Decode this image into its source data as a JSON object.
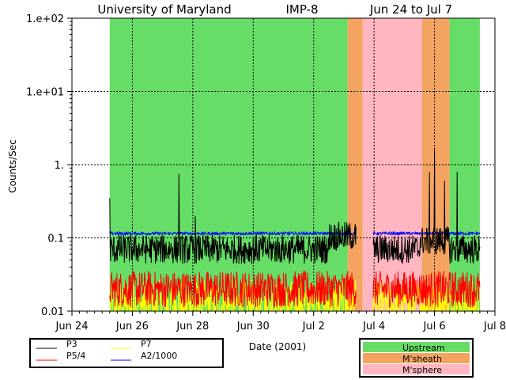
{
  "chart_data": {
    "type": "line",
    "title_parts": [
      "University of Maryland",
      "IMP-8",
      "Jun 24 to Jul 7"
    ],
    "xlabel": "Date (2001)",
    "ylabel": "Counts/Sec",
    "y_scale": "log",
    "ylim": [
      0.01,
      100
    ],
    "xlim": [
      "2001-06-24",
      "2001-07-08"
    ],
    "y_ticks": [
      {
        "value": 100,
        "label": "1.e+02"
      },
      {
        "value": 10,
        "label": "1.e+01"
      },
      {
        "value": 1,
        "label": "1."
      },
      {
        "value": 0.1,
        "label": "0.1"
      },
      {
        "value": 0.01,
        "label": "0.01"
      }
    ],
    "x_ticks": [
      {
        "value": "2001-06-24",
        "label": "Jun 24"
      },
      {
        "value": "2001-06-26",
        "label": "Jun 26"
      },
      {
        "value": "2001-06-28",
        "label": "Jun 28"
      },
      {
        "value": "2001-06-30",
        "label": "Jun 30"
      },
      {
        "value": "2001-07-02",
        "label": "Jul 2"
      },
      {
        "value": "2001-07-04",
        "label": "Jul 4"
      },
      {
        "value": "2001-07-06",
        "label": "Jul 6"
      },
      {
        "value": "2001-07-08",
        "label": "Jul 8"
      }
    ],
    "grid": true,
    "regions": [
      {
        "start": "2001-06-25 06:00",
        "end": "2001-07-03 03:00",
        "type": "Upstream"
      },
      {
        "start": "2001-07-03 03:00",
        "end": "2001-07-03 15:00",
        "type": "M'sheath"
      },
      {
        "start": "2001-07-03 15:00",
        "end": "2001-07-05 14:00",
        "type": "M'sphere"
      },
      {
        "start": "2001-07-05 14:00",
        "end": "2001-07-06 12:00",
        "type": "M'sheath"
      },
      {
        "start": "2001-07-06 12:00",
        "end": "2001-07-07 12:00",
        "type": "Upstream"
      }
    ],
    "region_colors": {
      "Upstream": "#66dd66",
      "M'sheath": "#f4a460",
      "M'sphere": "#ffb6c1"
    },
    "series": [
      {
        "name": "P3",
        "color": "#000000",
        "level": 0.07,
        "spread": 0.2,
        "data_gaps": [
          [
            "2001-07-03 10:00",
            "2001-07-03 23:00"
          ]
        ],
        "spikes": [
          {
            "x": "2001-06-25 06:00",
            "y": 0.35
          },
          {
            "x": "2001-06-27 13:00",
            "y": 0.75
          },
          {
            "x": "2001-06-28 02:00",
            "y": 0.2
          },
          {
            "x": "2001-07-05 20:00",
            "y": 0.8
          },
          {
            "x": "2001-07-06 00:00",
            "y": 1.6
          },
          {
            "x": "2001-07-06 08:00",
            "y": 0.6
          },
          {
            "x": "2001-07-06 18:00",
            "y": 0.8
          }
        ]
      },
      {
        "name": "P5/4",
        "color": "#ff0000",
        "level": 0.02,
        "spread": 0.25,
        "data_gaps": [
          [
            "2001-07-03 10:00",
            "2001-07-03 23:00"
          ]
        ],
        "spikes": []
      },
      {
        "name": "P7",
        "color": "#ffff00",
        "level": 0.012,
        "spread": 0.35,
        "data_gaps": [
          [
            "2001-07-03 10:00",
            "2001-07-03 23:00"
          ]
        ],
        "spikes": []
      },
      {
        "name": "A2/1000",
        "color": "#0000ff",
        "level": 0.115,
        "spread": 0.02,
        "data_gaps": [
          [
            "2001-07-03 10:00",
            "2001-07-03 23:00"
          ]
        ],
        "spikes": []
      }
    ],
    "legend_series": [
      {
        "name": "P3",
        "color": "#000000"
      },
      {
        "name": "P7",
        "color": "#ffff00"
      },
      {
        "name": "P5/4",
        "color": "#ff0000"
      },
      {
        "name": "A2/1000",
        "color": "#0000ff"
      }
    ],
    "legend_regions": [
      {
        "name": "Upstream",
        "color": "#66dd66"
      },
      {
        "name": "M'sheath",
        "color": "#f4a460"
      },
      {
        "name": "M'sphere",
        "color": "#ffb6c1"
      }
    ]
  }
}
